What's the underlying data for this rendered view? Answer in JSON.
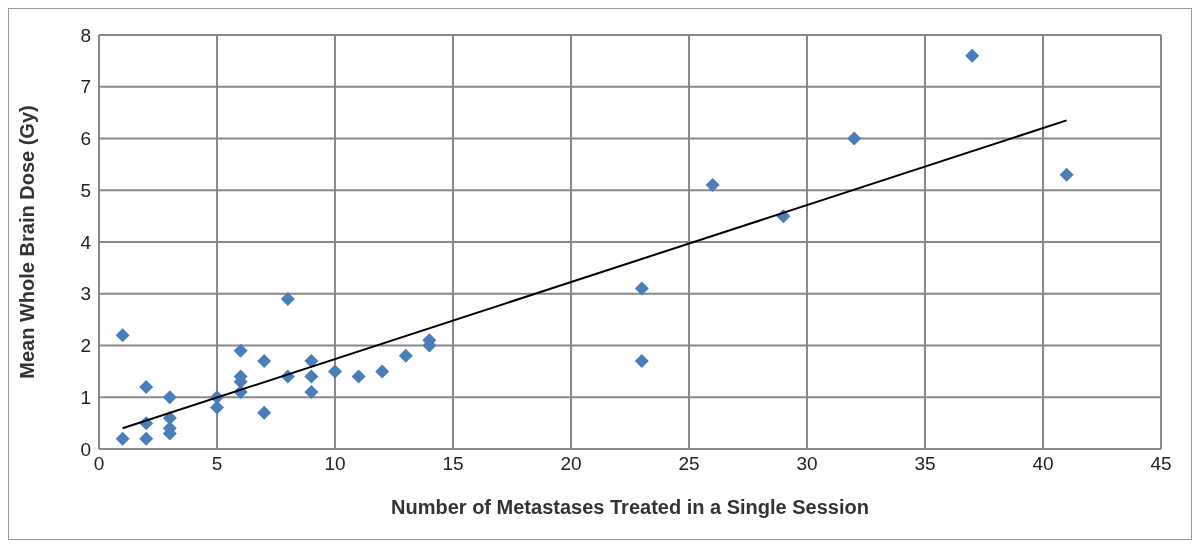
{
  "chart_data": {
    "type": "scatter",
    "xlabel": "Number of Metastases Treated in a Single Session",
    "ylabel": "Mean Whole Brain Dose (Gy)",
    "xlim": [
      0,
      45
    ],
    "xticks": [
      0,
      5,
      10,
      15,
      20,
      25,
      30,
      35,
      40,
      45
    ],
    "ylim": [
      0,
      8
    ],
    "yticks": [
      0,
      1,
      2,
      3,
      4,
      5,
      6,
      7,
      8
    ],
    "grid": true,
    "series": [
      {
        "color": "#4a7ebb",
        "marker": "diamond",
        "x": [
          1,
          1,
          2,
          2,
          2,
          3,
          3,
          3,
          3,
          5,
          5,
          6,
          6,
          6,
          6,
          7,
          7,
          8,
          8,
          9,
          9,
          9,
          10,
          11,
          12,
          13,
          14,
          14,
          23,
          23,
          26,
          29,
          32,
          37,
          41
        ],
        "values": [
          2.2,
          0.2,
          1.2,
          0.5,
          0.2,
          1.0,
          0.6,
          0.4,
          0.3,
          1.0,
          0.8,
          1.9,
          1.4,
          1.3,
          1.1,
          1.7,
          0.7,
          2.9,
          1.4,
          1.7,
          1.4,
          1.1,
          1.5,
          1.4,
          1.5,
          1.8,
          2.1,
          2.0,
          3.1,
          1.7,
          5.1,
          4.5,
          6.0,
          7.6,
          5.3
        ]
      },
      {
        "type": "line",
        "color": "#000000",
        "marker": "none",
        "line_style": "solid",
        "x": [
          1,
          41
        ],
        "values": [
          0.4,
          6.35
        ]
      }
    ]
  }
}
